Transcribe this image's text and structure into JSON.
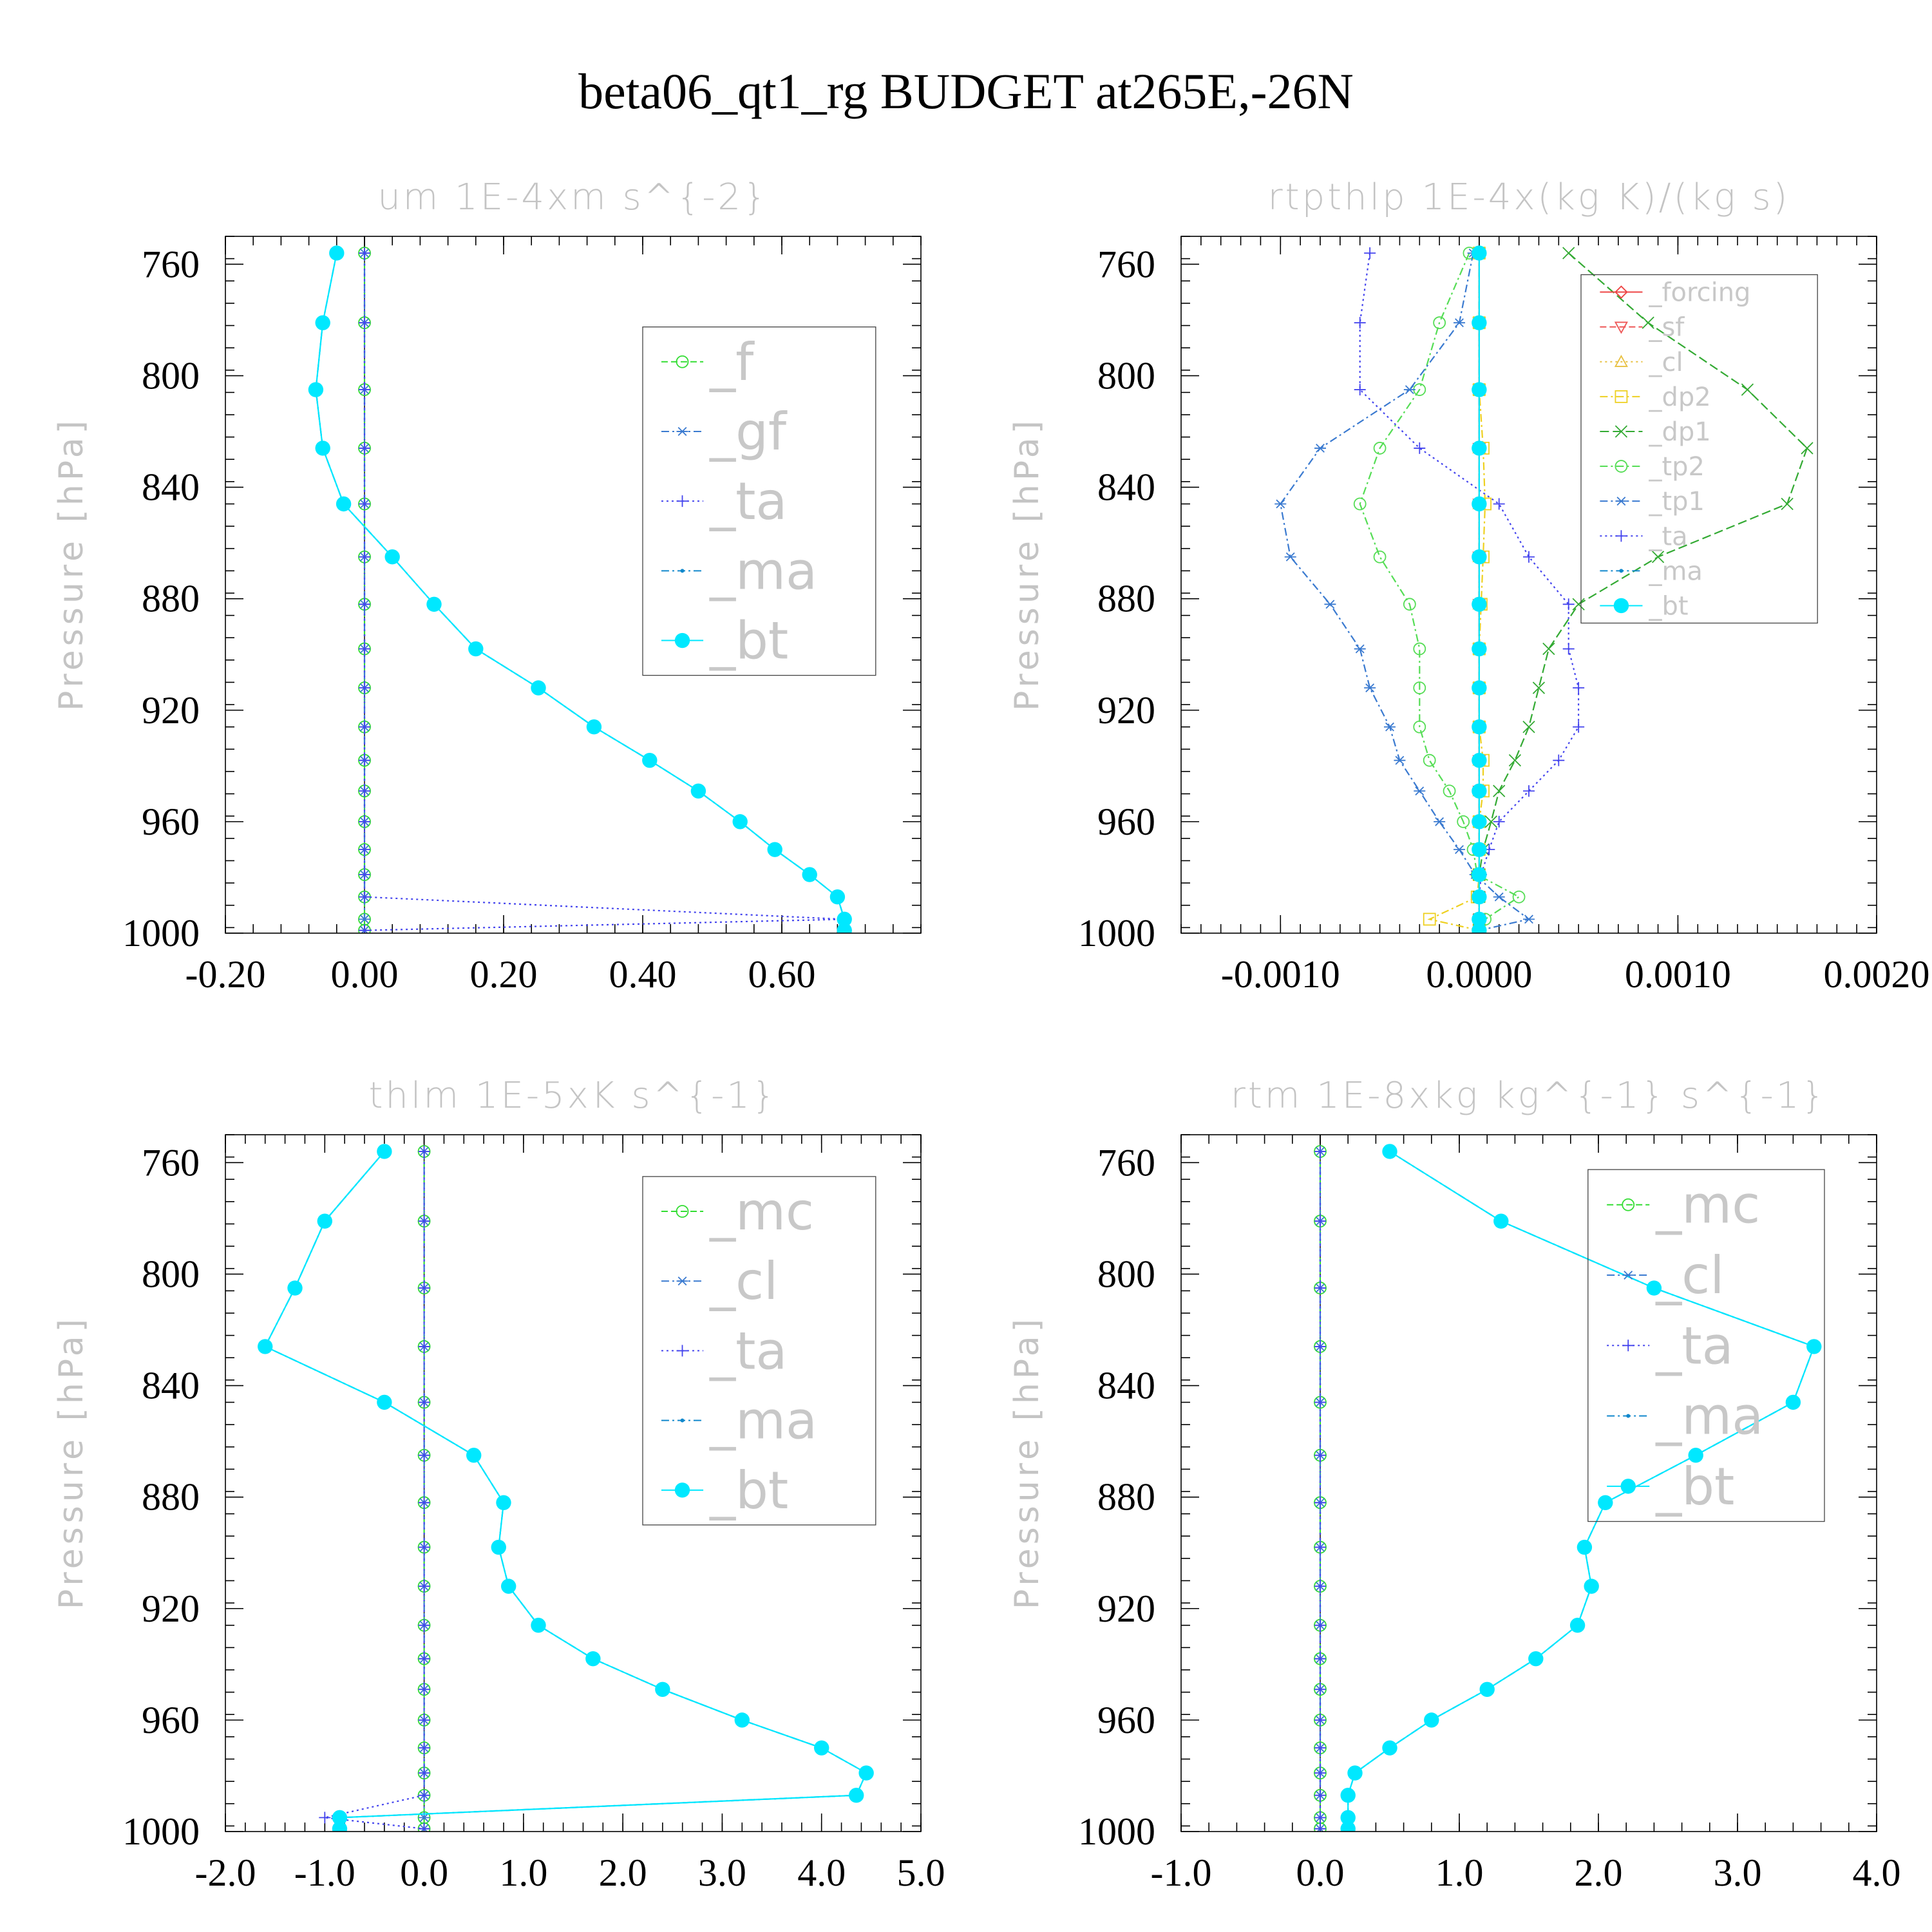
{
  "figure": {
    "title": "beta06_qt1_rg  BUDGET at265E,-26N"
  },
  "chart_data": [
    {
      "type": "line",
      "title": "um   1E-4xm s^{-2}",
      "ylabel": "Pressure [hPa]",
      "xlabel": "",
      "xlim": [
        -0.2,
        0.8
      ],
      "ylim": [
        1000,
        750
      ],
      "xticks": [
        -0.2,
        0.0,
        0.2,
        0.4,
        0.6
      ],
      "xtick_labels": [
        "-0.20",
        "0.00",
        "0.20",
        "0.40",
        "0.60"
      ],
      "xminor_step": 0.04,
      "yticks": [
        760,
        800,
        840,
        880,
        920,
        960,
        1000
      ],
      "ytick_labels": [
        "760",
        "800",
        "840",
        "880",
        "920",
        "960",
        "1000"
      ],
      "legend": "top-right",
      "legend_box": [
        0.6,
        0.13,
        0.935,
        0.63
      ],
      "legend_font": 80,
      "y": [
        756,
        781,
        805,
        826,
        846,
        865,
        882,
        898,
        912,
        926,
        938,
        949,
        960,
        970,
        979,
        987,
        995,
        999
      ],
      "series": [
        {
          "name": "_f",
          "color": "#33dd33",
          "marker": "circle",
          "dash": "10 5",
          "values": [
            0,
            0,
            0,
            0,
            0,
            0,
            0,
            0,
            0,
            0,
            0,
            0,
            0,
            0,
            0,
            0,
            0,
            0
          ]
        },
        {
          "name": "_gf",
          "color": "#3a7ad0",
          "marker": "asterisk",
          "dash": "12 5 3 5",
          "values": [
            0,
            0,
            0,
            0,
            0,
            0,
            0,
            0,
            0,
            0,
            0,
            0,
            0,
            0,
            0,
            0,
            0,
            0
          ]
        },
        {
          "name": "_ta",
          "color": "#4444ee",
          "marker": "plus",
          "dash": "3 5",
          "values": [
            0,
            0,
            0,
            0,
            0,
            0,
            0,
            0,
            0,
            0,
            0,
            0,
            0,
            0,
            0,
            0,
            0.69,
            0
          ]
        },
        {
          "name": "_ma",
          "color": "#1188cc",
          "marker": "dot",
          "dash": "12 5 3 5",
          "values": [
            -0.04,
            -0.06,
            -0.07,
            -0.06,
            -0.03,
            0.04,
            0.1,
            0.16,
            0.25,
            0.33,
            0.41,
            0.48,
            0.54,
            0.59,
            0.64,
            0.68,
            0.69,
            0.69
          ]
        },
        {
          "name": "_bt",
          "color": "#00e8ff",
          "marker": "filled-circle",
          "dash": "",
          "values": [
            -0.04,
            -0.06,
            -0.07,
            -0.06,
            -0.03,
            0.04,
            0.1,
            0.16,
            0.25,
            0.33,
            0.41,
            0.48,
            0.54,
            0.59,
            0.64,
            0.68,
            0.69,
            0.69
          ]
        }
      ]
    },
    {
      "type": "line",
      "title": "rtpthlp   1E-4x(kg K)/(kg s)",
      "ylabel": "Pressure [hPa]",
      "xlabel": "",
      "xlim": [
        -0.0015,
        0.002
      ],
      "ylim": [
        1000,
        750
      ],
      "xticks": [
        -0.001,
        0.0,
        0.001,
        0.002
      ],
      "xtick_labels": [
        "-0.0010",
        "0.0000",
        "0.0010",
        "0.0020"
      ],
      "xminor_step": 0.0001,
      "yticks": [
        760,
        800,
        840,
        880,
        920,
        960,
        1000
      ],
      "ytick_labels": [
        "760",
        "800",
        "840",
        "880",
        "920",
        "960",
        "1000"
      ],
      "legend": "top-right",
      "legend_box": [
        0.575,
        0.055,
        0.915,
        0.555
      ],
      "legend_font": 40,
      "y": [
        756,
        781,
        805,
        826,
        846,
        865,
        882,
        898,
        912,
        926,
        938,
        949,
        960,
        970,
        979,
        987,
        995,
        999
      ],
      "series": [
        {
          "name": "_forcing",
          "color": "#ee4444",
          "marker": "diamond",
          "dash": "",
          "values": [
            0,
            0,
            0,
            0,
            0,
            0,
            0,
            0,
            0,
            0,
            0,
            0,
            0,
            0,
            0,
            0,
            0,
            0
          ]
        },
        {
          "name": "_sf",
          "color": "#ee5555",
          "marker": "triangle-down",
          "dash": "10 5",
          "values": [
            0,
            0,
            0,
            0,
            0,
            0,
            0,
            0,
            0,
            0,
            0,
            0,
            0,
            0,
            0,
            0,
            0,
            0
          ]
        },
        {
          "name": "_cl",
          "color": "#e8c040",
          "marker": "triangle-up",
          "dash": "3 5",
          "values": [
            0,
            0,
            0,
            0,
            0,
            0,
            0,
            0,
            0,
            0,
            0,
            0,
            0,
            0,
            0,
            0,
            0,
            0
          ]
        },
        {
          "name": "_dp2",
          "color": "#eed020",
          "marker": "square",
          "dash": "12 5 3 5",
          "values": [
            0,
            0,
            0,
            2e-05,
            3e-05,
            2e-05,
            1e-05,
            0,
            0,
            0,
            2e-05,
            2e-05,
            0,
            0,
            0,
            -1e-05,
            -0.00025,
            0
          ]
        },
        {
          "name": "_dp1",
          "color": "#33aa33",
          "marker": "x",
          "dash": "14 6",
          "values": [
            0.00045,
            0.00085,
            0.00135,
            0.00165,
            0.00155,
            0.0009,
            0.0005,
            0.00035,
            0.0003,
            0.00025,
            0.00018,
            0.0001,
            6e-05,
            2e-05,
            0,
            0,
            0,
            0
          ]
        },
        {
          "name": "_tp2",
          "color": "#55dd55",
          "marker": "circle",
          "dash": "12 5 3 5",
          "values": [
            -5e-05,
            -0.0002,
            -0.0003,
            -0.0005,
            -0.0006,
            -0.0005,
            -0.00035,
            -0.0003,
            -0.0003,
            -0.0003,
            -0.00025,
            -0.00015,
            -8e-05,
            -3e-05,
            -1e-05,
            0.0002,
            3e-05,
            0
          ]
        },
        {
          "name": "_tp1",
          "color": "#3a7ad0",
          "marker": "asterisk",
          "dash": "12 5 3 5",
          "values": [
            -3e-05,
            -0.0001,
            -0.00035,
            -0.0008,
            -0.001,
            -0.00095,
            -0.00075,
            -0.0006,
            -0.00055,
            -0.00045,
            -0.0004,
            -0.0003,
            -0.0002,
            -0.0001,
            -2e-05,
            0.0001,
            0.00025,
            0
          ]
        },
        {
          "name": "_ta",
          "color": "#4444ee",
          "marker": "plus",
          "dash": "3 5",
          "values": [
            -0.00055,
            -0.0006,
            -0.0006,
            -0.0003,
            0.0001,
            0.00025,
            0.00045,
            0.00045,
            0.0005,
            0.0005,
            0.0004,
            0.00025,
            0.0001,
            5e-05,
            1e-05,
            0,
            0,
            0
          ]
        },
        {
          "name": "_ma",
          "color": "#1188cc",
          "marker": "dot",
          "dash": "12 5 3 5",
          "values": [
            0,
            0,
            0,
            0,
            0,
            0,
            0,
            0,
            0,
            0,
            0,
            0,
            0,
            0,
            0,
            0,
            0,
            0
          ]
        },
        {
          "name": "_bt",
          "color": "#00e8ff",
          "marker": "filled-circle",
          "dash": "",
          "values": [
            0,
            0,
            0,
            0,
            0,
            0,
            0,
            0,
            0,
            0,
            0,
            0,
            0,
            0,
            0,
            0,
            0,
            0
          ]
        }
      ]
    },
    {
      "type": "line",
      "title": "thlm   1E-5xK s^{-1}",
      "ylabel": "Pressure [hPa]",
      "xlabel": "",
      "xlim": [
        -2,
        5
      ],
      "ylim": [
        1000,
        750
      ],
      "xticks": [
        -2,
        -1,
        0,
        1,
        2,
        3,
        4,
        5
      ],
      "xtick_labels": [
        "-2.0",
        "-1.0",
        "0.0",
        "1.0",
        "2.0",
        "3.0",
        "4.0",
        "5.0"
      ],
      "xminor_step": 0.2,
      "yticks": [
        760,
        800,
        840,
        880,
        920,
        960,
        1000
      ],
      "ytick_labels": [
        "760",
        "800",
        "840",
        "880",
        "920",
        "960",
        "1000"
      ],
      "legend": "top-right",
      "legend_box": [
        0.6,
        0.06,
        0.935,
        0.56
      ],
      "legend_font": 80,
      "y": [
        756,
        781,
        805,
        826,
        846,
        865,
        882,
        898,
        912,
        926,
        938,
        949,
        960,
        970,
        979,
        987,
        995,
        999
      ],
      "series": [
        {
          "name": "_mc",
          "color": "#33dd33",
          "marker": "circle",
          "dash": "10 5",
          "values": [
            0,
            0,
            0,
            0,
            0,
            0,
            0,
            0,
            0,
            0,
            0,
            0,
            0,
            0,
            0,
            0,
            0,
            0
          ]
        },
        {
          "name": "_cl",
          "color": "#3a7ad0",
          "marker": "asterisk",
          "dash": "12 5 3 5",
          "values": [
            0,
            0,
            0,
            0,
            0,
            0,
            0,
            0,
            0,
            0,
            0,
            0,
            0,
            0,
            0,
            0,
            0,
            0
          ]
        },
        {
          "name": "_ta",
          "color": "#4444ee",
          "marker": "plus",
          "dash": "3 5",
          "values": [
            0,
            0,
            0,
            0,
            0,
            0,
            0,
            0,
            0,
            0,
            0,
            0,
            0,
            0,
            0,
            0,
            -1.0,
            0
          ]
        },
        {
          "name": "_ma",
          "color": "#1188cc",
          "marker": "dot",
          "dash": "12 5 3 5",
          "values": [
            -0.4,
            -1.0,
            -1.3,
            -1.6,
            -0.4,
            0.5,
            0.8,
            0.75,
            0.85,
            1.15,
            1.7,
            2.4,
            3.2,
            4.0,
            4.45,
            4.35,
            -0.85,
            -0.85
          ]
        },
        {
          "name": "_bt",
          "color": "#00e8ff",
          "marker": "filled-circle",
          "dash": "",
          "values": [
            -0.4,
            -1.0,
            -1.3,
            -1.6,
            -0.4,
            0.5,
            0.8,
            0.75,
            0.85,
            1.15,
            1.7,
            2.4,
            3.2,
            4.0,
            4.45,
            4.35,
            -0.85,
            -0.85
          ]
        }
      ]
    },
    {
      "type": "line",
      "title": "rtm   1E-8xkg kg^{-1} s^{-1}",
      "ylabel": "Pressure [hPa]",
      "xlabel": "",
      "xlim": [
        -1,
        4
      ],
      "ylim": [
        1000,
        750
      ],
      "xticks": [
        -1,
        0,
        1,
        2,
        3,
        4
      ],
      "xtick_labels": [
        "-1.0",
        "0.0",
        "1.0",
        "2.0",
        "3.0",
        "4.0"
      ],
      "xminor_step": 0.2,
      "yticks": [
        760,
        800,
        840,
        880,
        920,
        960,
        1000
      ],
      "ytick_labels": [
        "760",
        "800",
        "840",
        "880",
        "920",
        "960",
        "1000"
      ],
      "legend": "top-right",
      "legend_box": [
        0.585,
        0.05,
        0.925,
        0.555
      ],
      "legend_font": 80,
      "y": [
        756,
        781,
        805,
        826,
        846,
        865,
        882,
        898,
        912,
        926,
        938,
        949,
        960,
        970,
        979,
        987,
        995,
        999
      ],
      "series": [
        {
          "name": "_mc",
          "color": "#33dd33",
          "marker": "circle",
          "dash": "10 5",
          "values": [
            0,
            0,
            0,
            0,
            0,
            0,
            0,
            0,
            0,
            0,
            0,
            0,
            0,
            0,
            0,
            0,
            0,
            0
          ]
        },
        {
          "name": "_cl",
          "color": "#3a7ad0",
          "marker": "asterisk",
          "dash": "12 5 3 5",
          "values": [
            0,
            0,
            0,
            0,
            0,
            0,
            0,
            0,
            0,
            0,
            0,
            0,
            0,
            0,
            0,
            0,
            0,
            0
          ]
        },
        {
          "name": "_ta",
          "color": "#4444ee",
          "marker": "plus",
          "dash": "3 5",
          "values": [
            0,
            0,
            0,
            0,
            0,
            0,
            0,
            0,
            0,
            0,
            0,
            0,
            0,
            0,
            0,
            0,
            0,
            0
          ]
        },
        {
          "name": "_ma",
          "color": "#1188cc",
          "marker": "dot",
          "dash": "12 5 3 5",
          "values": [
            0.5,
            1.3,
            2.4,
            3.55,
            3.4,
            2.7,
            2.05,
            1.9,
            1.95,
            1.85,
            1.55,
            1.2,
            0.8,
            0.5,
            0.25,
            0.2,
            0.2,
            0.2
          ]
        },
        {
          "name": "_bt",
          "color": "#00e8ff",
          "marker": "filled-circle",
          "dash": "",
          "values": [
            0.5,
            1.3,
            2.4,
            3.55,
            3.4,
            2.7,
            2.05,
            1.9,
            1.95,
            1.85,
            1.55,
            1.2,
            0.8,
            0.5,
            0.25,
            0.2,
            0.2,
            0.2
          ]
        }
      ]
    }
  ]
}
